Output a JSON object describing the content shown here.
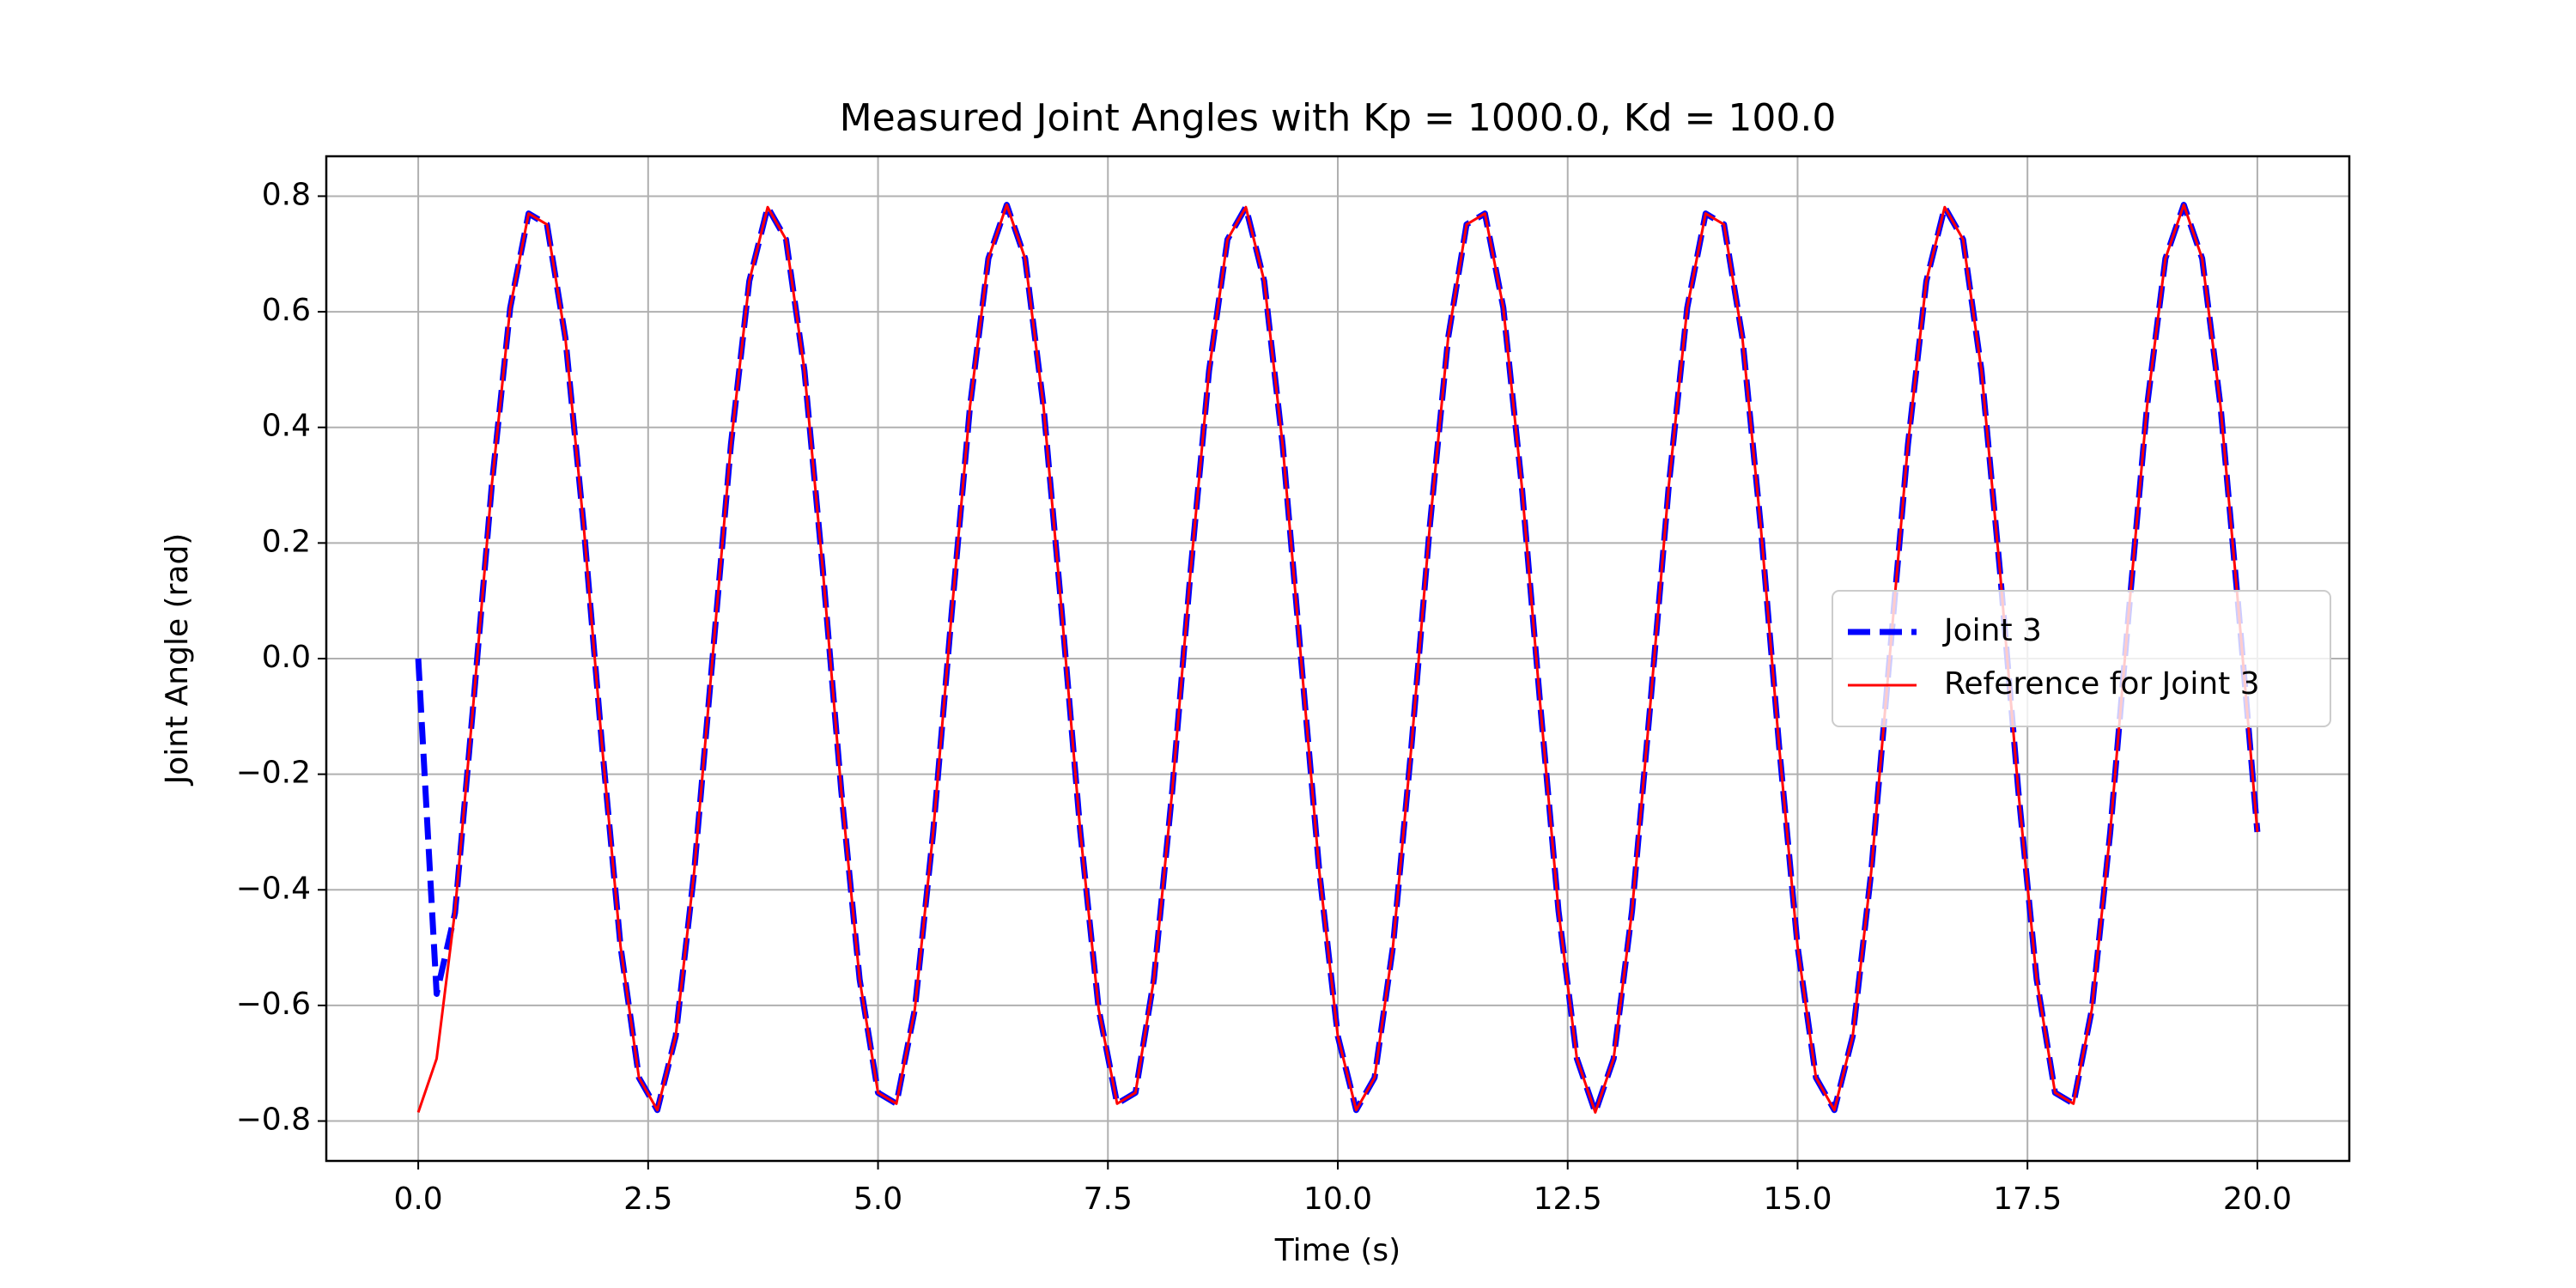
{
  "chart_data": {
    "type": "line",
    "title": "Measured Joint Angles with Kp = 1000.0, Kd = 100.0",
    "xlabel": "Time (s)",
    "ylabel": "Joint Angle (rad)",
    "x": [
      0,
      0.2,
      0.4,
      0.6,
      0.8,
      1,
      1.2,
      1.4,
      1.6,
      1.8,
      2,
      2.2,
      2.4,
      2.6,
      2.8,
      3,
      3.2,
      3.4,
      3.6,
      3.8,
      4,
      4.2,
      4.4,
      4.6,
      4.8,
      5,
      5.2,
      5.4,
      5.6,
      5.8,
      6,
      6.2,
      6.4,
      6.6,
      6.8,
      7,
      7.2,
      7.4,
      7.6,
      7.8,
      8,
      8.2,
      8.4,
      8.6,
      8.8,
      9,
      9.2,
      9.4,
      9.6,
      9.8,
      10,
      10.2,
      10.4,
      10.6,
      10.8,
      11,
      11.2,
      11.4,
      11.6,
      11.8,
      12,
      12.2,
      12.4,
      12.6,
      12.8,
      13,
      13.2,
      13.4,
      13.6,
      13.8,
      14,
      14.2,
      14.4,
      14.6,
      14.8,
      15,
      15.2,
      15.4,
      15.6,
      15.8,
      16,
      16.2,
      16.4,
      16.6,
      16.8,
      17,
      17.2,
      17.4,
      17.6,
      17.8,
      18,
      18.2,
      18.4,
      18.6,
      18.8,
      19,
      19.2,
      19.4,
      19.6,
      19.8,
      20
    ],
    "series": [
      {
        "name": "Joint 3",
        "color": "#0000ff",
        "style": "dashed",
        "values": [
          0,
          -0.58,
          -0.44,
          -0.077,
          0.3,
          0.607,
          0.77,
          0.751,
          0.555,
          0.228,
          -0.153,
          -0.498,
          -0.725,
          -0.781,
          -0.653,
          -0.37,
          0,
          0.37,
          0.653,
          0.781,
          0.725,
          0.498,
          0.153,
          -0.228,
          -0.555,
          -0.751,
          -0.77,
          -0.607,
          -0.3,
          0.077,
          0.436,
          0.692,
          0.785,
          0.692,
          0.436,
          0.077,
          -0.3,
          -0.607,
          -0.77,
          -0.751,
          -0.555,
          -0.228,
          0.153,
          0.498,
          0.725,
          0.781,
          0.653,
          0.37,
          0,
          -0.37,
          -0.653,
          -0.781,
          -0.725,
          -0.498,
          -0.153,
          0.228,
          0.555,
          0.751,
          0.77,
          0.607,
          0.3,
          -0.077,
          -0.436,
          -0.692,
          -0.785,
          -0.692,
          -0.436,
          -0.077,
          0.3,
          0.607,
          0.77,
          0.751,
          0.555,
          0.228,
          -0.153,
          -0.498,
          -0.725,
          -0.781,
          -0.653,
          -0.37,
          0,
          0.37,
          0.653,
          0.781,
          0.725,
          0.498,
          0.153,
          -0.228,
          -0.555,
          -0.751,
          -0.77,
          -0.607,
          -0.3,
          0.077,
          0.436,
          0.692,
          0.785,
          0.692,
          0.436,
          0.077,
          -0.3
        ]
      },
      {
        "name": "Reference for Joint 3",
        "color": "#ff0000",
        "style": "solid",
        "values": [
          -0.785,
          -0.692,
          -0.436,
          -0.077,
          0.3,
          0.607,
          0.77,
          0.751,
          0.555,
          0.228,
          -0.153,
          -0.498,
          -0.725,
          -0.781,
          -0.653,
          -0.37,
          0,
          0.37,
          0.653,
          0.781,
          0.725,
          0.498,
          0.153,
          -0.228,
          -0.555,
          -0.751,
          -0.77,
          -0.607,
          -0.3,
          0.077,
          0.436,
          0.692,
          0.785,
          0.692,
          0.436,
          0.077,
          -0.3,
          -0.607,
          -0.77,
          -0.751,
          -0.555,
          -0.228,
          0.153,
          0.498,
          0.725,
          0.781,
          0.653,
          0.37,
          0,
          -0.37,
          -0.653,
          -0.781,
          -0.725,
          -0.498,
          -0.153,
          0.228,
          0.555,
          0.751,
          0.77,
          0.607,
          0.3,
          -0.077,
          -0.436,
          -0.692,
          -0.785,
          -0.692,
          -0.436,
          -0.077,
          0.3,
          0.607,
          0.77,
          0.751,
          0.555,
          0.228,
          -0.153,
          -0.498,
          -0.725,
          -0.781,
          -0.653,
          -0.37,
          0,
          0.37,
          0.653,
          0.781,
          0.725,
          0.498,
          0.153,
          -0.228,
          -0.555,
          -0.751,
          -0.77,
          -0.607,
          -0.3,
          0.077,
          0.436,
          0.692,
          0.785,
          0.692,
          0.436,
          0.077,
          -0.3
        ]
      }
    ],
    "xlim": [
      -1,
      21
    ],
    "xticks": [
      {
        "value": 0,
        "label": "0.0"
      },
      2.5,
      {
        "value": 5,
        "label": "5.0"
      },
      7.5,
      {
        "value": 10,
        "label": "10.0"
      },
      12.5,
      {
        "value": 15,
        "label": "15.0"
      },
      17.5,
      {
        "value": 20,
        "label": "20.0"
      }
    ],
    "ylim": [
      -0.869,
      0.869
    ],
    "yticks": [
      {
        "value": -0.8,
        "label": "−0.8"
      },
      {
        "value": -0.6,
        "label": "−0.6"
      },
      {
        "value": -0.4,
        "label": "−0.4"
      },
      {
        "value": -0.2,
        "label": "−0.2"
      },
      {
        "value": 0,
        "label": "0.0"
      },
      0.2,
      0.4,
      0.6,
      0.8
    ],
    "grid": true,
    "legend": "center right"
  }
}
